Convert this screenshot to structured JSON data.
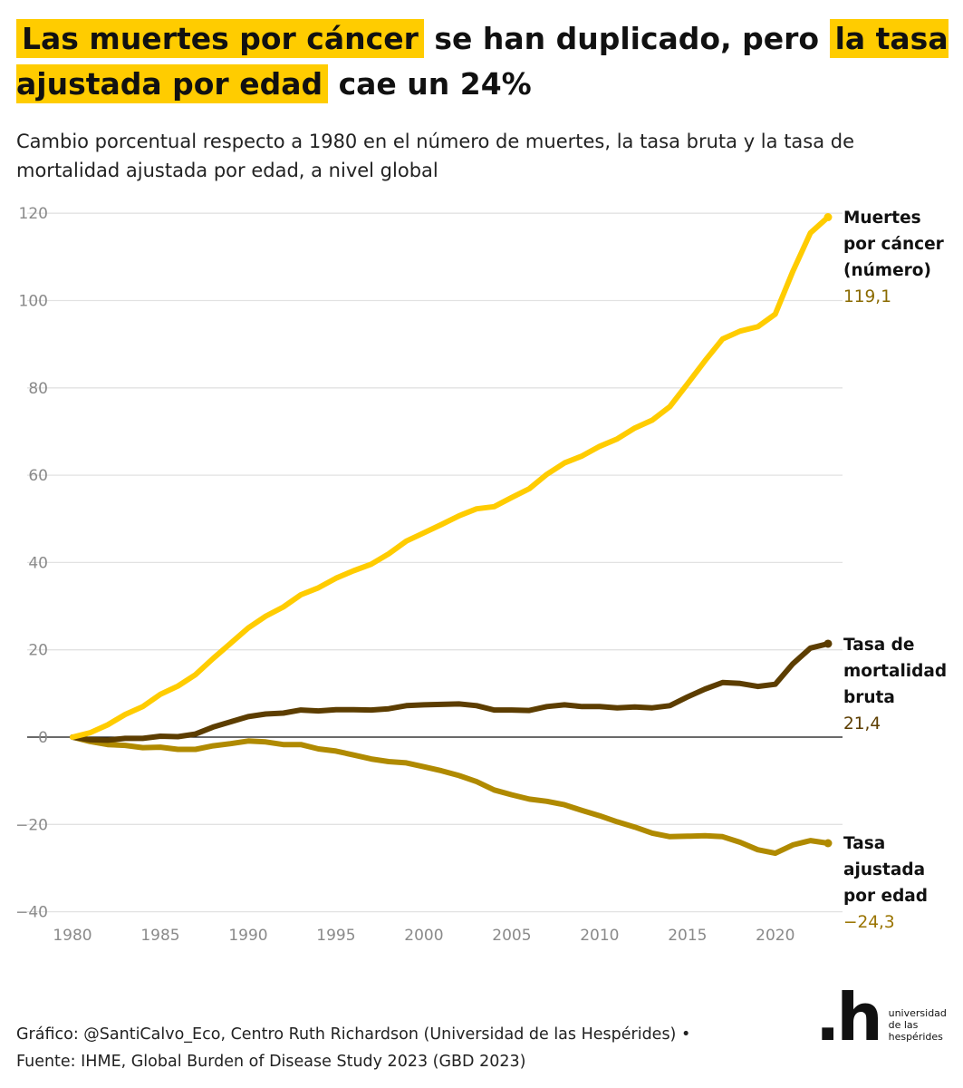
{
  "title": {
    "part1": "Las muertes por cáncer",
    "part2": " se han duplicado, pero ",
    "part3": "la tasa ajustada por edad",
    "part4": " cae un 24%"
  },
  "subtitle": "Cambio porcentual respecto a 1980 en el número de muertes, la tasa bruta y la tasa de mortalidad ajustada por edad, a nivel global",
  "footer": {
    "line1": "Gráfico: @SantiCalvo_Eco, Centro Ruth Richardson (Universidad de las Hespérides) •",
    "line2": "Fuente: IHME, Global Burden of Disease Study 2023 (GBD 2023)"
  },
  "logo": {
    "mark": ".h",
    "text": "universidad de las hespérides"
  },
  "chart_data": {
    "type": "line",
    "title": "Las muertes por cáncer se han duplicado, pero la tasa ajustada por edad cae un 24%",
    "xlabel": "",
    "ylabel": "",
    "ylim": [
      -40,
      120
    ],
    "xlim": [
      1980,
      2023
    ],
    "yticks": [
      -40,
      -20,
      0,
      20,
      40,
      60,
      80,
      100,
      120
    ],
    "ytick_labels": [
      "−40",
      "−20",
      "0",
      "20",
      "40",
      "60",
      "80",
      "100",
      "120"
    ],
    "xticks": [
      1980,
      1985,
      1990,
      1995,
      2000,
      2005,
      2010,
      2015,
      2020
    ],
    "grid": true,
    "legend": "direct labels right",
    "x": [
      1980,
      1981,
      1982,
      1983,
      1984,
      1985,
      1986,
      1987,
      1988,
      1989,
      1990,
      1991,
      1992,
      1993,
      1994,
      1995,
      1996,
      1997,
      1998,
      1999,
      2000,
      2001,
      2002,
      2003,
      2004,
      2005,
      2006,
      2007,
      2008,
      2009,
      2010,
      2011,
      2012,
      2013,
      2014,
      2015,
      2016,
      2017,
      2018,
      2019,
      2020,
      2021,
      2022,
      2023
    ],
    "series": [
      {
        "name": "Muertes por cáncer (número)",
        "label_lines": [
          "Muertes",
          "por cáncer",
          "(número)"
        ],
        "end_label": "119,1",
        "color": "#ffcc00",
        "value_color": "#8a6a00",
        "values": [
          0,
          1,
          2.8,
          5.2,
          7,
          9.8,
          11.7,
          14.3,
          18,
          21.5,
          25,
          27.7,
          29.8,
          32.6,
          34.2,
          36.4,
          38.1,
          39.6,
          42,
          44.9,
          46.8,
          48.7,
          50.7,
          52.3,
          52.8,
          54.9,
          56.9,
          60.2,
          62.8,
          64.4,
          66.6,
          68.3,
          70.8,
          72.6,
          75.7,
          80.9,
          86.2,
          91.2,
          93,
          94,
          96.9,
          106.7,
          115.5,
          119.1
        ]
      },
      {
        "name": "Tasa de mortalidad bruta",
        "label_lines": [
          "Tasa de",
          "mortalidad",
          "bruta"
        ],
        "end_label": "21,4",
        "color": "#5c3d00",
        "value_color": "#5c3d00",
        "values": [
          0,
          -0.6,
          -0.7,
          -0.3,
          -0.3,
          0.2,
          0.1,
          0.7,
          2.3,
          3.5,
          4.7,
          5.3,
          5.5,
          6.2,
          6,
          6.3,
          6.3,
          6.2,
          6.5,
          7.2,
          7.4,
          7.5,
          7.6,
          7.2,
          6.2,
          6.2,
          6.1,
          7,
          7.4,
          7,
          7,
          6.7,
          6.9,
          6.7,
          7.2,
          9.2,
          11,
          12.5,
          12.3,
          11.6,
          12.1,
          16.8,
          20.4,
          21.4
        ]
      },
      {
        "name": "Tasa ajustada por edad",
        "label_lines": [
          "Tasa",
          "ajustada",
          "por edad"
        ],
        "end_label": "−24,3",
        "color": "#b08a00",
        "value_color": "#9a7400",
        "values": [
          0,
          -1,
          -1.7,
          -1.9,
          -2.4,
          -2.3,
          -2.8,
          -2.8,
          -2,
          -1.5,
          -0.9,
          -1.1,
          -1.7,
          -1.7,
          -2.7,
          -3.2,
          -4.1,
          -5,
          -5.6,
          -5.9,
          -6.8,
          -7.7,
          -8.8,
          -10.2,
          -12.1,
          -13.2,
          -14.2,
          -14.7,
          -15.5,
          -16.8,
          -18,
          -19.4,
          -20.6,
          -22,
          -22.8,
          -22.7,
          -22.6,
          -22.8,
          -24.1,
          -25.8,
          -26.6,
          -24.7,
          -23.7,
          -24.3
        ]
      }
    ]
  }
}
